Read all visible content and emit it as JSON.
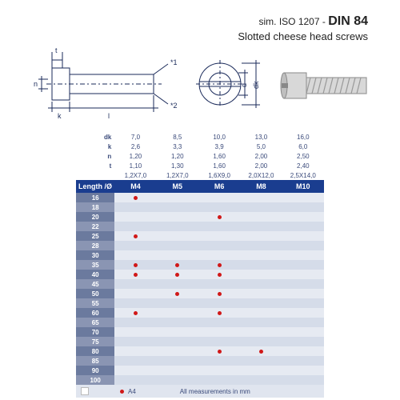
{
  "header": {
    "prefix": "sim. ISO 1207",
    "sep": " - ",
    "main": "DIN 84",
    "subtitle": "Slotted cheese head screws"
  },
  "spec_labels": [
    "dk",
    "k",
    "n",
    "t"
  ],
  "spec_values": [
    [
      "7,0",
      "8,5",
      "10,0",
      "13,0",
      "16,0"
    ],
    [
      "2,6",
      "3,3",
      "3,9",
      "5,0",
      "6,0"
    ],
    [
      "1,20",
      "1,20",
      "1,60",
      "2,00",
      "2,50"
    ],
    [
      "1,10",
      "1,30",
      "1,60",
      "2,00",
      "2,40"
    ]
  ],
  "last_spec_label": "",
  "last_spec_values": [
    "1,2X7,0",
    "1,2X7,0",
    "1,6X9,0",
    "2,0X12,0",
    "2,5X14,0"
  ],
  "header_row": {
    "label": "Length /Ø",
    "cols": [
      "M4",
      "M5",
      "M6",
      "M8",
      "M10"
    ]
  },
  "lengths": [
    "16",
    "18",
    "20",
    "22",
    "25",
    "28",
    "30",
    "35",
    "40",
    "45",
    "50",
    "55",
    "60",
    "65",
    "70",
    "75",
    "80",
    "85",
    "90",
    "100"
  ],
  "dots": {
    "16": [
      1,
      0,
      0,
      0,
      0
    ],
    "18": [
      0,
      0,
      0,
      0,
      0
    ],
    "20": [
      0,
      0,
      1,
      0,
      0
    ],
    "22": [
      0,
      0,
      0,
      0,
      0
    ],
    "25": [
      1,
      0,
      0,
      0,
      0
    ],
    "28": [
      0,
      0,
      0,
      0,
      0
    ],
    "30": [
      0,
      0,
      0,
      0,
      0
    ],
    "35": [
      1,
      1,
      1,
      0,
      0
    ],
    "40": [
      1,
      1,
      1,
      0,
      0
    ],
    "45": [
      0,
      0,
      0,
      0,
      0
    ],
    "50": [
      0,
      1,
      1,
      0,
      0
    ],
    "55": [
      0,
      0,
      0,
      0,
      0
    ],
    "60": [
      1,
      0,
      1,
      0,
      0
    ],
    "65": [
      0,
      0,
      0,
      0,
      0
    ],
    "70": [
      0,
      0,
      0,
      0,
      0
    ],
    "75": [
      0,
      0,
      0,
      0,
      0
    ],
    "80": [
      0,
      0,
      1,
      1,
      0
    ],
    "85": [
      0,
      0,
      0,
      0,
      0
    ],
    "90": [
      0,
      0,
      0,
      0,
      0
    ],
    "100": [
      0,
      0,
      0,
      0,
      0
    ]
  },
  "legend": {
    "marker": "A4",
    "note": "All measurements in mm"
  },
  "diagram": {
    "stroke": "#1a2a5a",
    "stroke_width": 1,
    "labels": {
      "star1": "*1",
      "star2": "*2",
      "k": "k",
      "l": "l",
      "t": "t",
      "n": "n",
      "d": "d",
      "dk": "dk"
    }
  },
  "colors": {
    "header_bg": "#1a3d8f",
    "row_label_even": "#6b7a9e",
    "row_label_odd": "#8a95b3",
    "cell_even": "#e6eaf2",
    "cell_odd": "#d5dce9",
    "dot": "#d01818",
    "text_blue": "#3a4a7a"
  }
}
